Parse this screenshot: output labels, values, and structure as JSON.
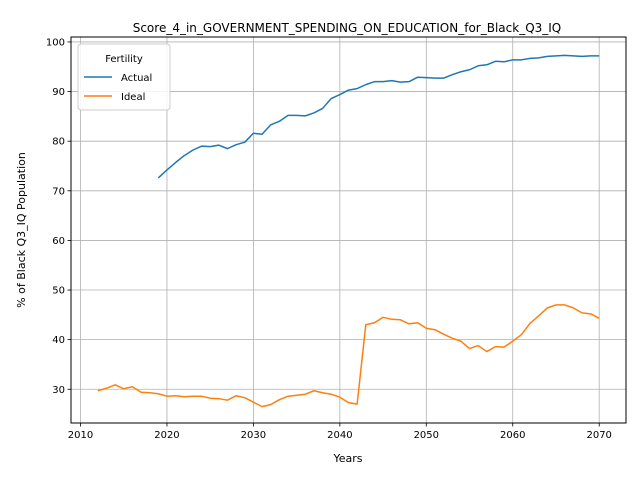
{
  "chart_data": {
    "type": "line",
    "title": "Score_4_in_GOVERNMENT_SPENDING_ON_EDUCATION_for_Black_Q3_IQ",
    "xlabel": "Years",
    "ylabel": "% of Black Q3_IQ Population",
    "xlim": [
      2008.9,
      2073.1
    ],
    "ylim": [
      23.2,
      101.0
    ],
    "xticks": [
      2010,
      2020,
      2030,
      2040,
      2050,
      2060,
      2070
    ],
    "yticks": [
      30,
      40,
      50,
      60,
      70,
      80,
      90,
      100
    ],
    "grid": true,
    "legend": {
      "title": "Fertility",
      "position": "top-left"
    },
    "series": [
      {
        "name": "Actual",
        "color": "#1f77b4",
        "x": [
          2019,
          2020,
          2021,
          2022,
          2023,
          2024,
          2025,
          2026,
          2027,
          2028,
          2029,
          2030,
          2031,
          2032,
          2033,
          2034,
          2035,
          2036,
          2037,
          2038,
          2039,
          2040,
          2041,
          2042,
          2043,
          2044,
          2045,
          2046,
          2047,
          2048,
          2049,
          2050,
          2051,
          2052,
          2053,
          2054,
          2055,
          2056,
          2057,
          2058,
          2059,
          2060,
          2061,
          2062,
          2063,
          2064,
          2065,
          2066,
          2067,
          2068,
          2069,
          2070
        ],
        "values": [
          72.6,
          74.2,
          75.7,
          77.1,
          78.2,
          79.0,
          78.9,
          79.2,
          78.5,
          79.3,
          79.8,
          81.6,
          81.4,
          83.3,
          84.0,
          85.2,
          85.2,
          85.1,
          85.7,
          86.6,
          88.6,
          89.4,
          90.3,
          90.6,
          91.4,
          92.0,
          92.0,
          92.2,
          91.9,
          92.0,
          92.9,
          92.8,
          92.7,
          92.7,
          93.4,
          94.0,
          94.4,
          95.2,
          95.4,
          96.1,
          96.0,
          96.4,
          96.4,
          96.7,
          96.8,
          97.1,
          97.2,
          97.3,
          97.2,
          97.1,
          97.2,
          97.2
        ]
      },
      {
        "name": "Ideal",
        "color": "#ff7f0e",
        "x": [
          2012,
          2013,
          2014,
          2015,
          2016,
          2017,
          2018,
          2019,
          2020,
          2021,
          2022,
          2023,
          2024,
          2025,
          2026,
          2027,
          2028,
          2029,
          2030,
          2031,
          2032,
          2033,
          2034,
          2035,
          2036,
          2037,
          2038,
          2039,
          2040,
          2041,
          2042,
          2043,
          2044,
          2045,
          2046,
          2047,
          2048,
          2049,
          2050,
          2051,
          2052,
          2053,
          2054,
          2055,
          2056,
          2057,
          2058,
          2059,
          2060,
          2061,
          2062,
          2063,
          2064,
          2065,
          2066,
          2067,
          2068,
          2069,
          2070
        ],
        "values": [
          29.7,
          30.2,
          30.9,
          30.1,
          30.5,
          29.4,
          29.3,
          29.1,
          28.6,
          28.7,
          28.5,
          28.6,
          28.6,
          28.2,
          28.1,
          27.8,
          28.7,
          28.3,
          27.4,
          26.5,
          26.9,
          27.9,
          28.6,
          28.8,
          29.0,
          29.7,
          29.3,
          29.0,
          28.4,
          27.3,
          27.0,
          43.0,
          43.4,
          44.5,
          44.1,
          44.0,
          43.2,
          43.4,
          42.3,
          42.0,
          41.1,
          40.3,
          39.7,
          38.2,
          38.8,
          37.6,
          38.6,
          38.5,
          39.7,
          41.0,
          43.3,
          44.8,
          46.4,
          47.0,
          47.0,
          46.4,
          45.4,
          45.2,
          44.3
        ]
      }
    ]
  }
}
